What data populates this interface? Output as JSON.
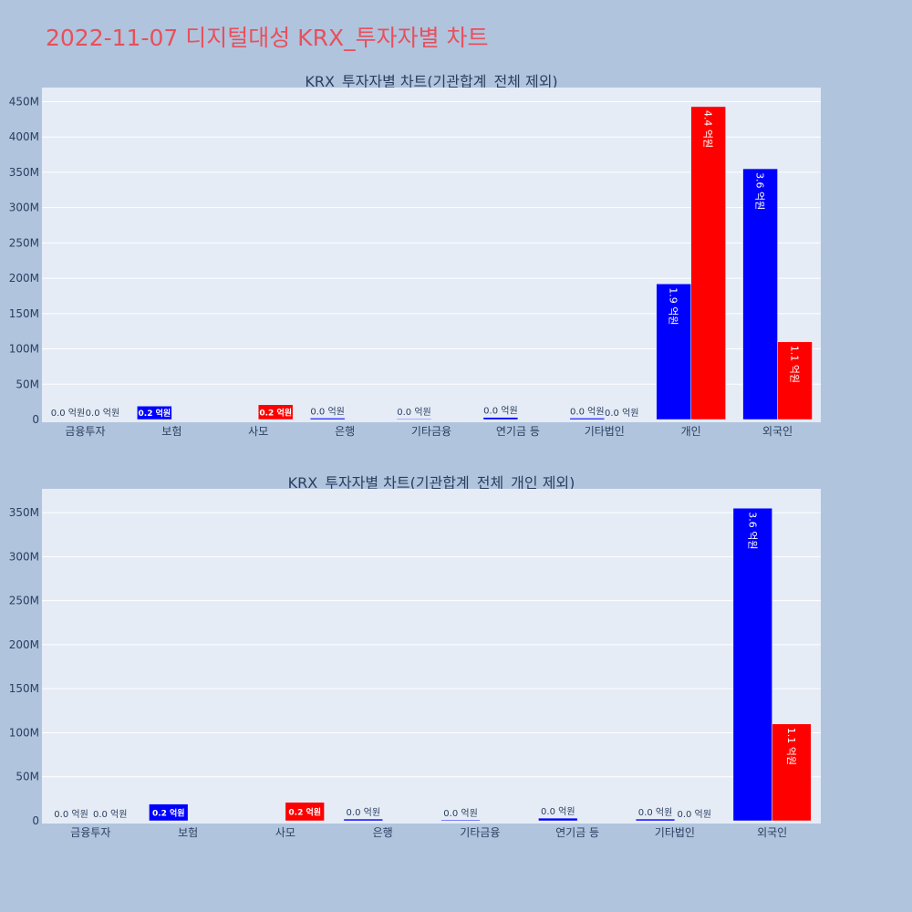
{
  "page": {
    "title": "2022-11-07 디지털대성 KRX_투자자별 차트"
  },
  "colors": {
    "buy": "#0000ff",
    "sell": "#ff0000",
    "plot_bg": "#e5ecf6",
    "paper_bg": "#b0c4de",
    "title": "#e8505b"
  },
  "chart_data": [
    {
      "type": "bar",
      "title": "KRX_투자자별 차트(기관합계_전체 제외)",
      "categories": [
        "금융투자",
        "보험",
        "사모",
        "은행",
        "기타금융",
        "연기금 등",
        "기타법인",
        "개인",
        "외국인"
      ],
      "series": [
        {
          "values": [
            0,
            19000000,
            0,
            2000000,
            1000000,
            3000000,
            2000000,
            192000000,
            355000000
          ],
          "labels": [
            "0.0 억원",
            "0.2 억원",
            "",
            "0.0 억원",
            "0.0 억원",
            "0.0 억원",
            "0.0 억원",
            "1.9 억원",
            "3.6 억원"
          ]
        },
        {
          "values": [
            0,
            0,
            21000000,
            0,
            0,
            0,
            0,
            443000000,
            110000000
          ],
          "labels": [
            "0.0 억원",
            "",
            "0.2 억원",
            "",
            "",
            "",
            "0.0 억원",
            "4.4 억원",
            "1.1 억원"
          ]
        }
      ],
      "ylim": [
        0,
        470000000
      ],
      "yticks": [
        0,
        50000000,
        100000000,
        150000000,
        200000000,
        250000000,
        300000000,
        350000000,
        400000000,
        450000000
      ],
      "ytick_labels": [
        "0",
        "50M",
        "100M",
        "150M",
        "200M",
        "250M",
        "300M",
        "350M",
        "400M",
        "450M"
      ],
      "grid": true
    },
    {
      "type": "bar",
      "title": "KRX_투자자별 차트(기관합계_전체_개인 제외)",
      "categories": [
        "금융투자",
        "보험",
        "사모",
        "은행",
        "기타금융",
        "연기금 등",
        "기타법인",
        "외국인"
      ],
      "series": [
        {
          "values": [
            0,
            19000000,
            0,
            2000000,
            1000000,
            3000000,
            2000000,
            355000000
          ],
          "labels": [
            "0.0 억원",
            "0.2 억원",
            "",
            "0.0 억원",
            "0.0 억원",
            "0.0 억원",
            "0.0 억원",
            "3.6 억원"
          ]
        },
        {
          "values": [
            0,
            0,
            21000000,
            0,
            0,
            0,
            0,
            110000000
          ],
          "labels": [
            "0.0 억원",
            "",
            "0.2 억원",
            "",
            "",
            "",
            "0.0 억원",
            "1.1 억원"
          ]
        }
      ],
      "ylim": [
        0,
        377000000
      ],
      "yticks": [
        0,
        50000000,
        100000000,
        150000000,
        200000000,
        250000000,
        300000000,
        350000000
      ],
      "ytick_labels": [
        "0",
        "50M",
        "100M",
        "150M",
        "200M",
        "250M",
        "300M",
        "350M"
      ],
      "grid": true
    }
  ]
}
